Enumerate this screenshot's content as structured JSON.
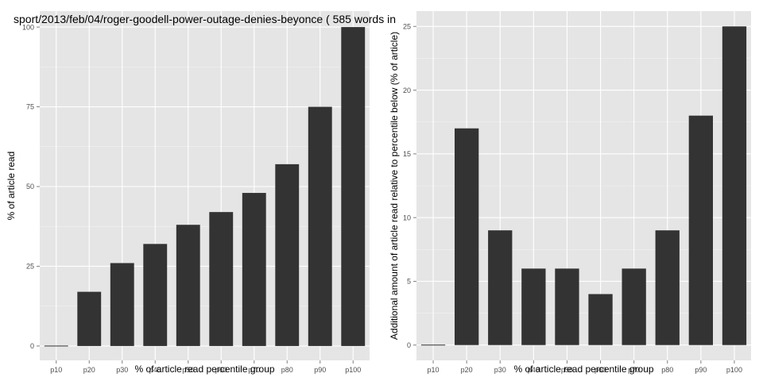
{
  "chart_data": [
    {
      "type": "bar",
      "title": "sport/2013/feb/04/roger-goodell-power-outage-denies-beyonce ( 585 words in",
      "xlabel": "% of article read percentile group",
      "ylabel": "% of article read",
      "categories": [
        "p10",
        "p20",
        "p30",
        "p40",
        "p50",
        "p60",
        "p70",
        "p80",
        "p90",
        "p100"
      ],
      "values": [
        0,
        17,
        26,
        32,
        38,
        42,
        48,
        57,
        75,
        100
      ],
      "ylim": [
        -4.5,
        105
      ],
      "yticks": [
        0,
        25,
        50,
        75,
        100
      ],
      "grid": true
    },
    {
      "type": "bar",
      "title": "",
      "xlabel": "% of article read percentile group",
      "ylabel": "Additional amount of article read relative to percentile below (% of article)",
      "categories": [
        "p10",
        "p20",
        "p30",
        "p40",
        "p50",
        "p60",
        "p70",
        "p80",
        "p90",
        "p100"
      ],
      "values": [
        0,
        17,
        9,
        6,
        6,
        4,
        6,
        9,
        18,
        25
      ],
      "ylim": [
        -1.2,
        26.2
      ],
      "yticks": [
        0,
        5,
        10,
        15,
        20,
        25
      ],
      "grid": true
    }
  ],
  "colors": {
    "panel_background": "#e5e5e5",
    "grid_major": "#ffffff",
    "grid_minor": "#f2f2f2",
    "bar_fill": "#333333",
    "tick_text": "#4d4d4d"
  }
}
